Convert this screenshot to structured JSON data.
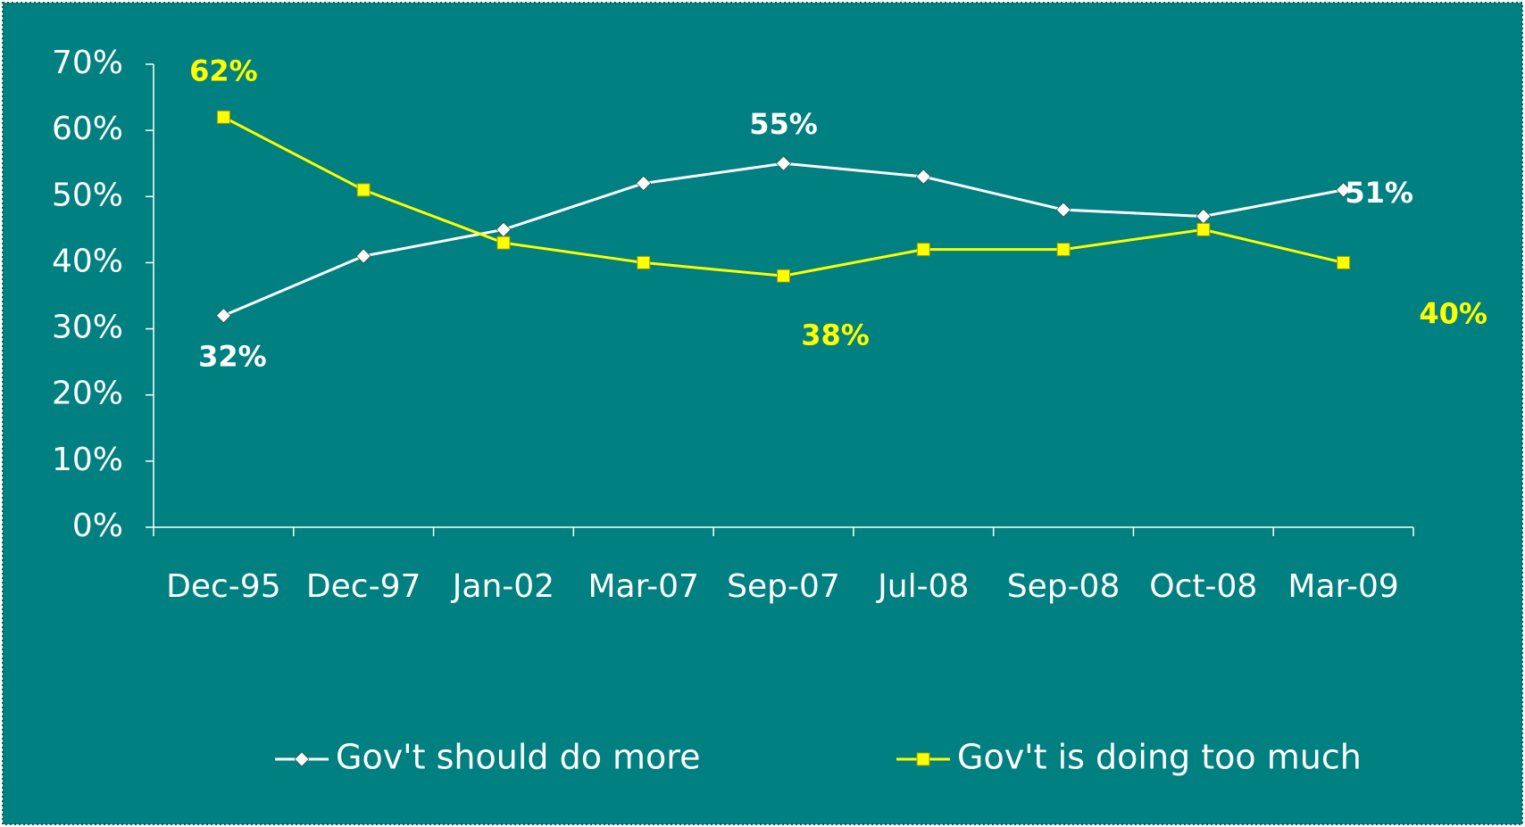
{
  "chart_data": {
    "type": "line",
    "categories": [
      "Dec-95",
      "Dec-97",
      "Jan-02",
      "Mar-07",
      "Sep-07",
      "Jul-08",
      "Sep-08",
      "Oct-08",
      "Mar-09"
    ],
    "series": [
      {
        "name": "Gov't should do more",
        "color": "#ffffff",
        "marker": "diamond",
        "values": [
          32,
          41,
          45,
          52,
          55,
          53,
          48,
          47,
          51
        ],
        "value_labels": [
          "32%",
          null,
          null,
          null,
          "55%",
          null,
          null,
          null,
          "51%"
        ]
      },
      {
        "name": "Gov't is doing too much",
        "color": "#ffff00",
        "marker": "square",
        "values": [
          62,
          51,
          43,
          40,
          38,
          42,
          42,
          45,
          40
        ],
        "value_labels": [
          "62%",
          null,
          null,
          null,
          "38%",
          null,
          null,
          null,
          "40%"
        ]
      }
    ],
    "ylim": [
      0,
      70
    ],
    "yticks": [
      {
        "value": 0,
        "label": "0%"
      },
      {
        "value": 10,
        "label": "10%"
      },
      {
        "value": 20,
        "label": "20%"
      },
      {
        "value": 30,
        "label": "30%"
      },
      {
        "value": 40,
        "label": "40%"
      },
      {
        "value": 50,
        "label": "50%"
      },
      {
        "value": 60,
        "label": "60%"
      },
      {
        "value": 70,
        "label": "70%"
      }
    ],
    "legend": "bottom",
    "grid": false
  }
}
